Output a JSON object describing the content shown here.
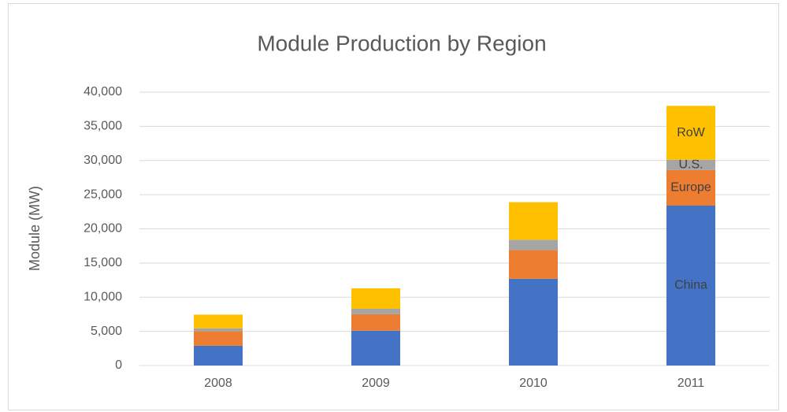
{
  "chart_data": {
    "type": "stacked_bar",
    "title": "Module Production by Region",
    "y_label": "Module (MW)",
    "categories": [
      "2008",
      "2009",
      "2010",
      "2011"
    ],
    "series": [
      {
        "name": "China",
        "color": "#4472c4",
        "values": [
          2900,
          5100,
          12700,
          23400
        ]
      },
      {
        "name": "Europe",
        "color": "#ed7d31",
        "values": [
          2100,
          2400,
          4200,
          5200
        ]
      },
      {
        "name": "U.S.",
        "color": "#a5a5a5",
        "values": [
          450,
          800,
          1500,
          1500
        ]
      },
      {
        "name": "RoW",
        "color": "#ffc000",
        "values": [
          2000,
          3000,
          5500,
          7900
        ]
      }
    ],
    "ylim": [
      0,
      40000
    ],
    "yticks": [
      0,
      {
        "value": 5000,
        "label": "5,000"
      },
      {
        "value": 10000,
        "label": "10,000"
      },
      {
        "value": 15000,
        "label": "15,000"
      },
      {
        "value": 20000,
        "label": "20,000"
      },
      {
        "value": 25000,
        "label": "25,000"
      },
      {
        "value": 30000,
        "label": "30,000"
      },
      {
        "value": 35000,
        "label": "35,000"
      },
      {
        "value": 40000,
        "label": "40,000"
      }
    ],
    "grid": true
  }
}
